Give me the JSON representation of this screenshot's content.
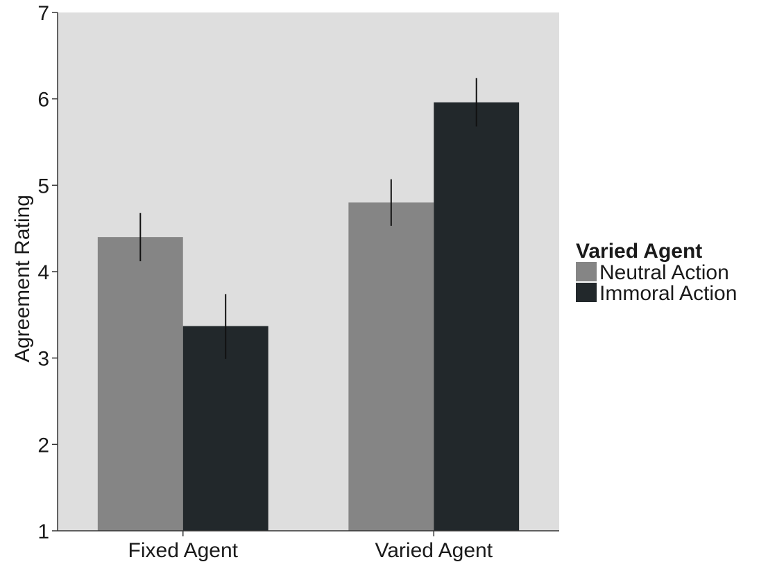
{
  "chart_data": {
    "type": "bar",
    "title": "",
    "xlabel": "",
    "ylabel": "Agreement Rating",
    "ylim": [
      1,
      7
    ],
    "yticks": [
      "1",
      "2",
      "3",
      "4",
      "5",
      "6",
      "7"
    ],
    "categories": [
      "Fixed Agent",
      "Varied Agent"
    ],
    "legend": {
      "title": "Varied Agent",
      "position": "right"
    },
    "series": [
      {
        "name": "Neutral Action",
        "color": "#858585",
        "values": [
          4.4,
          4.8
        ],
        "error": [
          [
            4.12,
            4.68
          ],
          [
            4.53,
            5.07
          ]
        ]
      },
      {
        "name": "Immoral Action",
        "color": "#22282b",
        "values": [
          3.37,
          5.96
        ],
        "error": [
          [
            2.99,
            3.74
          ],
          [
            5.68,
            6.24
          ]
        ]
      }
    ],
    "panel_background": "#dedede",
    "grid": false
  }
}
